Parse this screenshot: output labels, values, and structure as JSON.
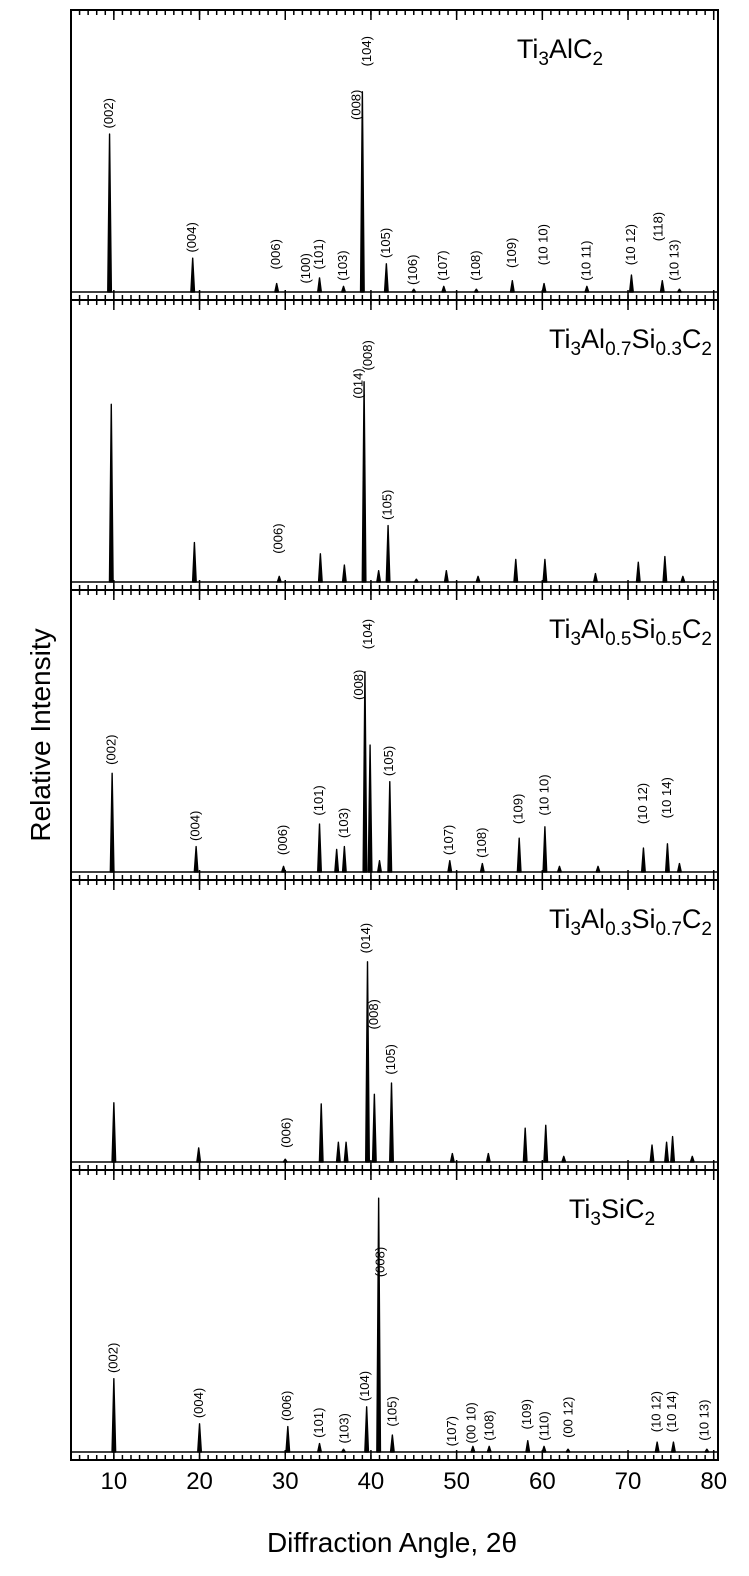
{
  "chart_data": [
    {
      "type": "stem",
      "name": [
        "Ti",
        "3",
        "AlC",
        "2"
      ],
      "ylabel": "Relative Intensity",
      "ylim": [
        0,
        100
      ],
      "x": [
        9.5,
        19.2,
        29,
        34,
        36.8,
        39,
        41.8,
        45,
        48.5,
        52.3,
        56.5,
        60.2,
        65.2,
        70.4,
        74,
        76
      ],
      "values": [
        56,
        12,
        3,
        5,
        2,
        71,
        10,
        1,
        2,
        1,
        4,
        3,
        2,
        6,
        4,
        1
      ],
      "annotations": [
        {
          "text": "(002)",
          "x": 9.5,
          "y": 58
        },
        {
          "text": "(004)",
          "x": 19.2,
          "y": 14
        },
        {
          "text": "(006)",
          "x": 29,
          "y": 8
        },
        {
          "text": "(100)",
          "x": 32.5,
          "y": 3
        },
        {
          "text": "(101)",
          "x": 34,
          "y": 8
        },
        {
          "text": "(103)",
          "x": 36.8,
          "y": 4
        },
        {
          "text": "(008)",
          "x": 38.4,
          "y": 61
        },
        {
          "text": "(104)",
          "x": 39.6,
          "y": 80
        },
        {
          "text": "(105)",
          "x": 41.8,
          "y": 12
        },
        {
          "text": "(106)",
          "x": 45,
          "y": 2.5
        },
        {
          "text": "(107)",
          "x": 48.5,
          "y": 4
        },
        {
          "text": "(108)",
          "x": 52.3,
          "y": 4
        },
        {
          "text": "(109)",
          "x": 56.5,
          "y": 8.5
        },
        {
          "text": "(10 10)",
          "x": 60.2,
          "y": 9.5
        },
        {
          "text": "(10 11)",
          "x": 65.2,
          "y": 4
        },
        {
          "text": "(10 12)",
          "x": 70.4,
          "y": 9.5
        },
        {
          "text": "(118)",
          "x": 73.6,
          "y": 18
        },
        {
          "text": "(10 13)",
          "x": 75.5,
          "y": 4
        }
      ]
    },
    {
      "type": "stem",
      "name": [
        "Ti",
        "3",
        "Al",
        "0.7",
        "Si",
        "0.3",
        "C",
        "2"
      ],
      "ylim": [
        0,
        100
      ],
      "x": [
        9.7,
        19.4,
        29.3,
        34.1,
        36.9,
        39.2,
        40.9,
        42,
        45.3,
        48.8,
        52.5,
        56.9,
        60.3,
        66.2,
        71.2,
        74.3,
        76.4
      ],
      "values": [
        63,
        14,
        2,
        10,
        6,
        71,
        4,
        20,
        1,
        4,
        2,
        8,
        8,
        3,
        7,
        9,
        2
      ],
      "annotations": [
        {
          "text": "(006)",
          "x": 29.3,
          "y": 10
        },
        {
          "text": "(014)",
          "x": 38.6,
          "y": 65
        },
        {
          "text": "(008)",
          "x": 39.7,
          "y": 75
        },
        {
          "text": "(105)",
          "x": 42,
          "y": 22
        }
      ]
    },
    {
      "type": "stem",
      "name": [
        "Ti",
        "3",
        "Al",
        "0.5",
        "Si",
        "0.5",
        "C",
        "2"
      ],
      "ylim": [
        0,
        100
      ],
      "x": [
        9.8,
        19.6,
        29.8,
        34,
        36,
        36.9,
        39.3,
        39.9,
        41,
        42.2,
        49.2,
        53,
        57.3,
        60.3,
        62,
        66.5,
        71.8,
        74.6,
        76
      ],
      "values": [
        35,
        9,
        2,
        17,
        8,
        9,
        71,
        45,
        4,
        32,
        4,
        3,
        12,
        16,
        2,
        2,
        8.5,
        10,
        3
      ],
      "annotations": [
        {
          "text": "(002)",
          "x": 9.8,
          "y": 38
        },
        {
          "text": "(004)",
          "x": 19.6,
          "y": 11
        },
        {
          "text": "(006)",
          "x": 29.8,
          "y": 6
        },
        {
          "text": "(101)",
          "x": 34,
          "y": 20
        },
        {
          "text": "(103)",
          "x": 36.9,
          "y": 12
        },
        {
          "text": "(008)",
          "x": 38.7,
          "y": 61
        },
        {
          "text": "(104)",
          "x": 39.7,
          "y": 79
        },
        {
          "text": "(105)",
          "x": 42.2,
          "y": 34
        },
        {
          "text": "(107)",
          "x": 49.2,
          "y": 6
        },
        {
          "text": "(108)",
          "x": 53,
          "y": 5
        },
        {
          "text": "(109)",
          "x": 57.3,
          "y": 17
        },
        {
          "text": "(10 10)",
          "x": 60.3,
          "y": 20
        },
        {
          "text": "(10 12)",
          "x": 71.8,
          "y": 17
        },
        {
          "text": "(10 14)",
          "x": 74.6,
          "y": 19
        }
      ]
    },
    {
      "type": "stem",
      "name": [
        "Ti",
        "3",
        "Al",
        "0.3",
        "Si",
        "0.7",
        "C",
        "2"
      ],
      "ylim": [
        0,
        100
      ],
      "x": [
        10,
        19.9,
        30,
        34.2,
        36.2,
        37.1,
        39.6,
        40.4,
        42.4,
        49.5,
        53.7,
        58,
        60.4,
        62.5,
        72.8,
        74.5,
        75.2,
        77.5
      ],
      "values": [
        21,
        5,
        1,
        20.6,
        7,
        7,
        71,
        24,
        28,
        3,
        3,
        12,
        13,
        2,
        6,
        7,
        9,
        2
      ],
      "annotations": [
        {
          "text": "(006)",
          "x": 30.2,
          "y": 5
        },
        {
          "text": "(014)",
          "x": 39.5,
          "y": 74
        },
        {
          "text": "(008)",
          "x": 40.4,
          "y": 47
        },
        {
          "text": "(105)",
          "x": 42.4,
          "y": 31
        }
      ]
    },
    {
      "type": "stem",
      "name": [
        "Ti",
        "3",
        "SiC",
        "2"
      ],
      "ylim": [
        0,
        100
      ],
      "xlabel": "Diffraction Angle, 2θ",
      "xlim": [
        5,
        80.5
      ],
      "xticks": [
        10,
        20,
        30,
        40,
        50,
        60,
        70,
        80
      ],
      "x": [
        10,
        20,
        30.3,
        34,
        36.8,
        39.5,
        40.9,
        42.5,
        51.9,
        53.8,
        58.3,
        60.2,
        63,
        73.4,
        75.3,
        79.2
      ],
      "values": [
        26,
        10,
        9,
        3,
        1,
        16,
        90,
        6,
        2,
        2,
        4,
        2,
        1,
        3.5,
        3.5,
        1
      ],
      "annotations": [
        {
          "text": "(002)",
          "x": 10,
          "y": 28
        },
        {
          "text": "(004)",
          "x": 20,
          "y": 12
        },
        {
          "text": "(006)",
          "x": 30.3,
          "y": 11
        },
        {
          "text": "(101)",
          "x": 34,
          "y": 5
        },
        {
          "text": "(103)",
          "x": 37,
          "y": 3
        },
        {
          "text": "(104)",
          "x": 39.4,
          "y": 18
        },
        {
          "text": "(008)",
          "x": 41.2,
          "y": 62
        },
        {
          "text": "(105)",
          "x": 42.6,
          "y": 9
        },
        {
          "text": "(107)",
          "x": 49.5,
          "y": 2
        },
        {
          "text": "(00 10)",
          "x": 51.8,
          "y": 3
        },
        {
          "text": "(108)",
          "x": 53.9,
          "y": 4
        },
        {
          "text": "(109)",
          "x": 58.3,
          "y": 8
        },
        {
          "text": "(110)",
          "x": 60.3,
          "y": 4
        },
        {
          "text": "(00 12)",
          "x": 63.1,
          "y": 5
        },
        {
          "text": "(10 12)",
          "x": 73.4,
          "y": 7
        },
        {
          "text": "(10 14)",
          "x": 75.2,
          "y": 7
        },
        {
          "text": "(10 13)",
          "x": 79,
          "y": 4
        }
      ]
    }
  ]
}
